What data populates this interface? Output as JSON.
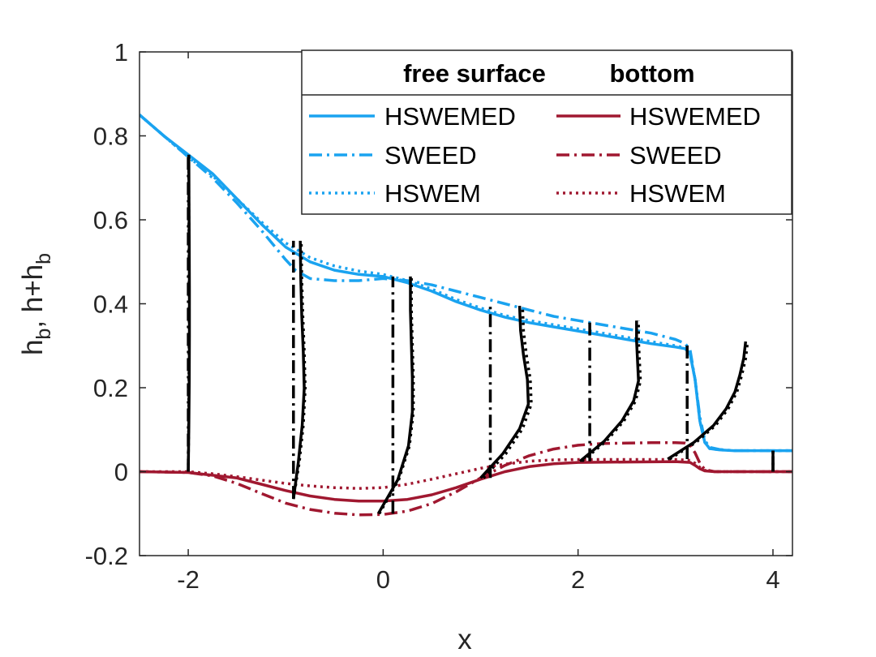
{
  "chart_data": {
    "type": "line",
    "title": "",
    "xlabel": "x",
    "ylabel_parts": {
      "p1": "h",
      "s1": "b",
      "p2": ", h+h",
      "s2": "b"
    },
    "xlim": [
      -2.5,
      4.2
    ],
    "ylim": [
      -0.2,
      1.0
    ],
    "xticks": [
      -2,
      0,
      2,
      4
    ],
    "xtick_labels": [
      "-2",
      "0",
      "2",
      "4"
    ],
    "yticks": [
      -0.2,
      0,
      0.2,
      0.4,
      0.6,
      0.8,
      1.0
    ],
    "ytick_labels": [
      "-0.2",
      "0",
      "0.2",
      "0.4",
      "0.6",
      "0.8",
      "1"
    ],
    "grid": false,
    "legend": {
      "position": "top-right",
      "column_titles": [
        "free surface",
        "bottom"
      ]
    },
    "colors": {
      "free_surface": "#1aa3f0",
      "bottom": "#a01830",
      "profiles": "#000000",
      "axis": "#262626"
    },
    "series": [
      {
        "name": "HSWEMED",
        "group": "free surface",
        "style": "solid",
        "x": [
          -2.5,
          -2.25,
          -2.0,
          -1.75,
          -1.5,
          -1.25,
          -1.0,
          -0.75,
          -0.5,
          -0.25,
          0.0,
          0.25,
          0.5,
          0.75,
          1.0,
          1.25,
          1.5,
          1.75,
          2.0,
          2.25,
          2.5,
          2.75,
          3.0,
          3.1,
          3.15,
          3.2,
          3.25,
          3.3,
          3.35,
          3.45,
          3.6,
          4.2
        ],
        "y": [
          0.85,
          0.8,
          0.755,
          0.71,
          0.65,
          0.59,
          0.535,
          0.5,
          0.48,
          0.47,
          0.465,
          0.45,
          0.43,
          0.405,
          0.385,
          0.368,
          0.355,
          0.345,
          0.335,
          0.325,
          0.315,
          0.305,
          0.297,
          0.293,
          0.28,
          0.22,
          0.12,
          0.07,
          0.055,
          0.052,
          0.05,
          0.05
        ]
      },
      {
        "name": "SWEED",
        "group": "free surface",
        "style": "dashdot",
        "x": [
          -2.5,
          -2.25,
          -2.0,
          -1.75,
          -1.5,
          -1.25,
          -1.0,
          -0.9,
          -0.75,
          -0.5,
          -0.25,
          0.0,
          0.25,
          0.5,
          0.75,
          1.0,
          1.25,
          1.5,
          1.75,
          2.0,
          2.25,
          2.5,
          2.75,
          3.0,
          3.1,
          3.15,
          3.2,
          3.25,
          3.3,
          3.35,
          3.45,
          3.6,
          4.2
        ],
        "y": [
          0.85,
          0.8,
          0.75,
          0.7,
          0.64,
          0.575,
          0.505,
          0.48,
          0.46,
          0.455,
          0.455,
          0.46,
          0.455,
          0.445,
          0.43,
          0.415,
          0.4,
          0.385,
          0.37,
          0.36,
          0.35,
          0.34,
          0.33,
          0.315,
          0.305,
          0.29,
          0.22,
          0.13,
          0.075,
          0.058,
          0.053,
          0.05,
          0.05
        ]
      },
      {
        "name": "HSWEM",
        "group": "free surface",
        "style": "dotted",
        "x": [
          -2.5,
          -2.25,
          -2.0,
          -1.75,
          -1.5,
          -1.25,
          -1.0,
          -0.75,
          -0.5,
          -0.25,
          0.0,
          0.25,
          0.5,
          0.75,
          1.0,
          1.25,
          1.5,
          1.75,
          2.0,
          2.25,
          2.5,
          2.75,
          3.0,
          3.1,
          3.15,
          3.2,
          3.25,
          3.3,
          3.35,
          3.45,
          3.6,
          4.2
        ],
        "y": [
          0.85,
          0.8,
          0.75,
          0.705,
          0.65,
          0.595,
          0.545,
          0.51,
          0.49,
          0.478,
          0.47,
          0.455,
          0.435,
          0.41,
          0.39,
          0.372,
          0.36,
          0.35,
          0.34,
          0.33,
          0.32,
          0.31,
          0.3,
          0.295,
          0.28,
          0.22,
          0.12,
          0.07,
          0.055,
          0.052,
          0.05,
          0.05
        ]
      },
      {
        "name": "HSWEMED",
        "group": "bottom",
        "style": "solid",
        "x": [
          -2.5,
          -2.0,
          -1.5,
          -1.25,
          -1.0,
          -0.75,
          -0.5,
          -0.25,
          0.0,
          0.25,
          0.5,
          0.75,
          1.0,
          1.25,
          1.5,
          1.75,
          2.0,
          2.5,
          3.0,
          3.15,
          3.2,
          3.25,
          3.3,
          3.4,
          4.2
        ],
        "y": [
          0.0,
          -0.002,
          -0.015,
          -0.03,
          -0.045,
          -0.058,
          -0.066,
          -0.07,
          -0.07,
          -0.066,
          -0.055,
          -0.038,
          -0.018,
          0.0,
          0.012,
          0.019,
          0.022,
          0.023,
          0.024,
          0.022,
          0.015,
          0.007,
          0.002,
          0.0,
          0.0
        ]
      },
      {
        "name": "SWEED",
        "group": "bottom",
        "style": "dashdot",
        "x": [
          -2.5,
          -2.0,
          -1.75,
          -1.5,
          -1.25,
          -1.0,
          -0.75,
          -0.5,
          -0.25,
          0.0,
          0.25,
          0.5,
          0.75,
          1.0,
          1.25,
          1.5,
          1.75,
          2.0,
          2.25,
          2.5,
          2.75,
          3.0,
          3.1,
          3.15,
          3.2,
          3.25,
          3.3,
          3.4,
          4.2
        ],
        "y": [
          0.0,
          -0.002,
          -0.01,
          -0.028,
          -0.052,
          -0.075,
          -0.09,
          -0.099,
          -0.103,
          -0.102,
          -0.094,
          -0.076,
          -0.048,
          -0.015,
          0.015,
          0.038,
          0.054,
          0.063,
          0.067,
          0.068,
          0.069,
          0.069,
          0.068,
          0.063,
          0.045,
          0.02,
          0.005,
          0.0,
          0.0
        ]
      },
      {
        "name": "HSWEM",
        "group": "bottom",
        "style": "dotted",
        "x": [
          -2.5,
          -2.0,
          -1.75,
          -1.5,
          -1.25,
          -1.0,
          -0.75,
          -0.5,
          -0.25,
          0.0,
          0.25,
          0.5,
          0.75,
          1.0,
          1.25,
          1.5,
          1.75,
          2.0,
          2.25,
          2.5,
          2.75,
          3.0,
          3.15,
          3.2,
          3.25,
          3.3,
          3.4,
          4.2
        ],
        "y": [
          0.0,
          0.0,
          -0.005,
          -0.012,
          -0.02,
          -0.028,
          -0.034,
          -0.038,
          -0.04,
          -0.038,
          -0.03,
          -0.018,
          -0.005,
          0.008,
          0.018,
          0.025,
          0.028,
          0.029,
          0.029,
          0.029,
          0.029,
          0.029,
          0.027,
          0.02,
          0.01,
          0.003,
          0.0,
          0.0
        ]
      }
    ],
    "velocity_profiles": [
      {
        "x": -2.0,
        "bottom": 0.0,
        "top": 0.755,
        "solid_dx": [
          0.0,
          0.006,
          0.01,
          0.012,
          0.012,
          0.01,
          0.008,
          0.006
        ],
        "dotted_dx": [
          0.0,
          0.004,
          0.007,
          0.009,
          0.009,
          0.008,
          0.006,
          0.005
        ],
        "dashdot_dx": [
          0.0,
          0.0
        ]
      },
      {
        "x": -0.92,
        "bottom": -0.065,
        "top": 0.55,
        "solid_dx": [
          0.0,
          0.05,
          0.09,
          0.11,
          0.1,
          0.085,
          0.075,
          0.07
        ],
        "dotted_dx": [
          0.0,
          0.06,
          0.1,
          0.12,
          0.11,
          0.095,
          0.085,
          0.08
        ],
        "dashdot_dx": [
          0.0,
          0.0
        ]
      },
      {
        "x": 0.1,
        "bottom": -0.1,
        "top": 0.465,
        "solid_dx": [
          -0.15,
          0.05,
          0.16,
          0.2,
          0.2,
          0.19,
          0.18,
          0.18
        ],
        "dotted_dx": [
          -0.14,
          0.06,
          0.17,
          0.21,
          0.21,
          0.2,
          0.19,
          0.19
        ],
        "dashdot_dx": [
          0.0,
          0.0
        ]
      },
      {
        "x": 1.1,
        "bottom": -0.015,
        "top": 0.395,
        "solid_dx": [
          -0.1,
          0.13,
          0.3,
          0.39,
          0.38,
          0.34,
          0.31,
          0.3
        ],
        "dotted_dx": [
          -0.07,
          0.16,
          0.33,
          0.42,
          0.41,
          0.37,
          0.34,
          0.33
        ],
        "dashdot_dx": [
          0.0,
          0.0
        ]
      },
      {
        "x": 2.12,
        "bottom": 0.025,
        "top": 0.36,
        "solid_dx": [
          -0.1,
          0.15,
          0.33,
          0.45,
          0.5,
          0.49,
          0.48,
          0.48
        ],
        "dotted_dx": [
          -0.08,
          0.17,
          0.35,
          0.47,
          0.52,
          0.51,
          0.5,
          0.5
        ],
        "dashdot_dx": [
          0.0,
          0.0
        ]
      },
      {
        "x": 3.12,
        "bottom": 0.03,
        "top": 0.31,
        "solid_dx": [
          -0.2,
          0.07,
          0.27,
          0.4,
          0.49,
          0.54,
          0.58,
          0.6
        ],
        "dotted_dx": [
          -0.18,
          0.09,
          0.29,
          0.42,
          0.51,
          0.56,
          0.6,
          0.62
        ],
        "dashdot_dx": [
          0.0,
          0.0
        ]
      },
      {
        "x": 4.0,
        "bottom": 0.0,
        "top": 0.05,
        "solid_dx": [
          0.0,
          0.0
        ],
        "dotted_dx": [
          0.0,
          0.0
        ],
        "dashdot_dx": [
          0.0,
          0.0
        ]
      }
    ]
  }
}
